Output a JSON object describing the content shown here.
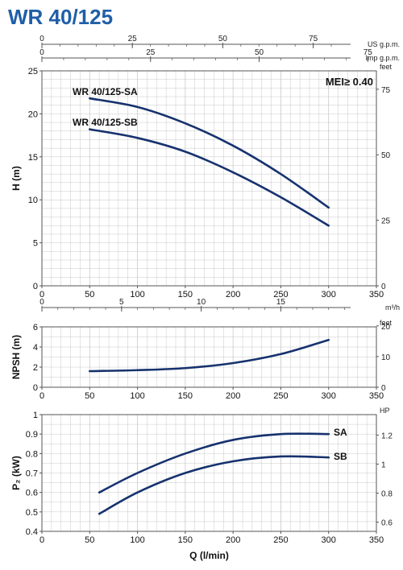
{
  "title": "WR 40/125",
  "colors": {
    "title": "#1f5fa8",
    "curve": "#16326e",
    "grid": "#c8c8c8",
    "frame": "#555555"
  },
  "chart_data": [
    {
      "type": "line",
      "id": "head",
      "ylabel": "H (m)",
      "xlim": [
        0,
        350
      ],
      "ylim": [
        0,
        25
      ],
      "grid": true,
      "x_ticks": [
        0,
        50,
        100,
        150,
        200,
        250,
        300,
        350
      ],
      "y_ticks": [
        0,
        5,
        10,
        15,
        20,
        25
      ],
      "right_axis": {
        "unit": "feet",
        "ticks": [
          0,
          25,
          50,
          75
        ]
      },
      "top_axes": [
        {
          "unit": "US g.p.m.",
          "ticks": [
            0,
            25,
            50,
            75
          ]
        },
        {
          "unit": "Imp g.p.m.",
          "ticks": [
            0,
            25,
            50,
            75
          ]
        }
      ],
      "annotation": "MEI≥ 0.40",
      "series": [
        {
          "name": "WR 40/125-SA",
          "x": [
            50,
            100,
            150,
            200,
            250,
            300
          ],
          "y": [
            21.8,
            20.8,
            18.9,
            16.3,
            13.0,
            9.1
          ]
        },
        {
          "name": "WR 40/125-SB",
          "x": [
            50,
            100,
            150,
            200,
            250,
            300
          ],
          "y": [
            18.2,
            17.2,
            15.6,
            13.2,
            10.3,
            7.0
          ]
        }
      ]
    },
    {
      "type": "line",
      "id": "npsh",
      "ylabel": "NPSH (m)",
      "xlim": [
        0,
        350
      ],
      "ylim": [
        0,
        6
      ],
      "grid": true,
      "x_ticks": [
        0,
        50,
        100,
        150,
        200,
        250,
        300,
        350
      ],
      "y_ticks": [
        0,
        2,
        4,
        6
      ],
      "right_axis": {
        "unit": "feet",
        "ticks": [
          0,
          10,
          20
        ]
      },
      "top_axes": [
        {
          "unit": "m³/h",
          "ticks": [
            0,
            5,
            10,
            15
          ]
        }
      ],
      "series": [
        {
          "x": [
            50,
            100,
            150,
            200,
            250,
            300
          ],
          "y": [
            1.6,
            1.7,
            1.9,
            2.4,
            3.3,
            4.7
          ]
        }
      ]
    },
    {
      "type": "line",
      "id": "power",
      "ylabel": "P₂ (kW)",
      "xlabel": "Q (l/min)",
      "xlim": [
        0,
        350
      ],
      "ylim": [
        0.4,
        1.0
      ],
      "grid": true,
      "x_ticks": [
        0,
        50,
        100,
        150,
        200,
        250,
        300,
        350
      ],
      "y_ticks": [
        0.4,
        0.5,
        0.6,
        0.7,
        0.8,
        0.9,
        1.0
      ],
      "right_axis": {
        "unit": "HP",
        "ticks": [
          0.6,
          0.8,
          1.0,
          1.2
        ]
      },
      "series": [
        {
          "name": "SA",
          "x": [
            60,
            100,
            150,
            200,
            250,
            300
          ],
          "y": [
            0.6,
            0.7,
            0.8,
            0.87,
            0.9,
            0.9
          ]
        },
        {
          "name": "SB",
          "x": [
            60,
            100,
            150,
            200,
            250,
            300
          ],
          "y": [
            0.49,
            0.6,
            0.7,
            0.76,
            0.785,
            0.78
          ]
        }
      ]
    }
  ]
}
